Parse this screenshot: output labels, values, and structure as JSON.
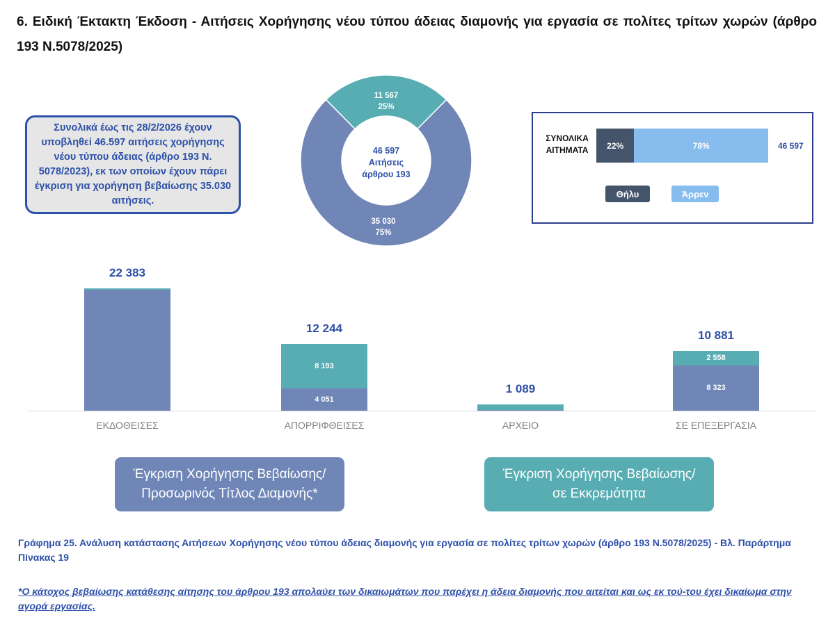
{
  "page": {
    "title": "6. Ειδική Έκτακτη Έκδοση - Αιτήσεις Χορήγησης νέου τύπου άδειας διαμονής για εργασία σε πολίτες τρίτων χωρών (άρθρο 193 Ν.5078/2025)",
    "summary": "Συνολικά έως τις 28/2/2026 έχουν υποβληθεί 46.597 αιτήσεις χορήγησης νέου τύπου άδειας (άρθρο 193 Ν. 5078/2023), εκ των οποίων έχουν πάρει έγκριση για χορήγηση βεβαίωσης 35.030 αιτήσεις.",
    "pill_left": [
      "Έγκριση Χορήγησης Βεβαίωσης/",
      "Προσωρινός Τίτλος Διαμονής*"
    ],
    "pill_right": [
      "Έγκριση Χορήγησης Βεβαίωσης/",
      "σε Εκκρεμότητα"
    ],
    "caption": "Γράφημα 25. Ανάλυση κατάστασης Αιτήσεων Χορήγησης νέου τύπου άδειας διαμονής για εργασία σε πολίτες τρίτων χωρών (άρθρο 193 Ν.5078/2025) - Βλ. Παράρτημα Πίνακας 19",
    "footnote": "*Ο κάτοχος βεβαίωσης κατάθεσης αίτησης  του άρθρου 193 απολαύει των δικαιωμάτων που παρέχει η άδεια διαμονής που αιτείται και ως εκ τού-του έχει δικαίωμα στην αγορά εργασίας.",
    "colors": {
      "blue": "#6f86b7",
      "teal": "#58adb3",
      "navy": "#2d50a8",
      "female": "#44546a",
      "male": "#86bdee"
    }
  },
  "chart_data": [
    {
      "type": "pie",
      "center_label": [
        "46 597",
        "Αιτήσεις",
        "άρθρου 193"
      ],
      "slices": [
        {
          "value": 11567,
          "value_label": "11 567",
          "pct_label": "25%",
          "color": "#58adb3"
        },
        {
          "value": 35030,
          "value_label": "35 030",
          "pct_label": "75%",
          "color": "#6f86b7"
        }
      ]
    },
    {
      "type": "bar",
      "orientation": "horizontal",
      "row_label": [
        "ΣΥΝΟΛΙΚΑ",
        "ΑΙΤΗΜΑΤΑ"
      ],
      "total_label": "46 597",
      "series": [
        {
          "name": "Θήλυ",
          "value": 22,
          "value_label": "22%",
          "color": "#44546a"
        },
        {
          "name": "Άρρεν",
          "value": 78,
          "value_label": "78%",
          "color": "#86bdee"
        }
      ]
    },
    {
      "type": "bar",
      "stacked": true,
      "categories": [
        "ΕΚΔΟΘΕΙΣΕΣ",
        "ΑΠΟΡΡΙΦΘΕΙΣΕΣ",
        "ΑΡΧΕΙΟ",
        "ΣΕ ΕΠΕΞΕΡΓΑΣΙΑ"
      ],
      "totals": [
        22383,
        12244,
        1089,
        10881
      ],
      "total_labels": [
        "22 383",
        "12 244",
        "1 089",
        "10 881"
      ],
      "series": [
        {
          "values": [
            22160,
            4051,
            120,
            8323
          ],
          "value_labels": [
            "",
            "4 051",
            "",
            "8 323"
          ],
          "color": "#6f86b7"
        },
        {
          "values": [
            223,
            8193,
            969,
            2558
          ],
          "value_labels": [
            "",
            "8 193",
            "",
            "2 558"
          ],
          "color": "#58adb3"
        }
      ],
      "ylim": [
        0,
        22383
      ]
    }
  ]
}
